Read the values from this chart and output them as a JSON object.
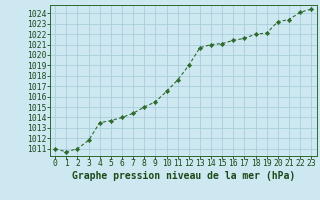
{
  "x": [
    0,
    1,
    2,
    3,
    4,
    5,
    6,
    7,
    8,
    9,
    10,
    11,
    12,
    13,
    14,
    15,
    16,
    17,
    18,
    19,
    20,
    21,
    22,
    23
  ],
  "y": [
    1011.0,
    1010.7,
    1011.0,
    1011.8,
    1013.5,
    1013.7,
    1014.0,
    1014.4,
    1015.0,
    1015.5,
    1016.5,
    1017.6,
    1019.0,
    1020.7,
    1021.0,
    1021.1,
    1021.4,
    1021.6,
    1022.0,
    1022.1,
    1023.2,
    1023.4,
    1024.1,
    1024.4
  ],
  "line_color": "#2d6a2d",
  "marker": "D",
  "marker_size": 2.2,
  "bg_color": "#cde8f0",
  "grid_color": "#aacfdb",
  "border_color": "#2d6a2d",
  "xlabel": "Graphe pression niveau de la mer (hPa)",
  "xlabel_fontsize": 7.0,
  "xlabel_color": "#1a4a1a",
  "tick_label_color": "#1a4a1a",
  "tick_fontsize": 5.8,
  "ylim": [
    1010.3,
    1024.8
  ],
  "xlim": [
    -0.5,
    23.5
  ],
  "yticks": [
    1011,
    1012,
    1013,
    1014,
    1015,
    1016,
    1017,
    1018,
    1019,
    1020,
    1021,
    1022,
    1023,
    1024
  ],
  "xticks": [
    0,
    1,
    2,
    3,
    4,
    5,
    6,
    7,
    8,
    9,
    10,
    11,
    12,
    13,
    14,
    15,
    16,
    17,
    18,
    19,
    20,
    21,
    22,
    23
  ]
}
